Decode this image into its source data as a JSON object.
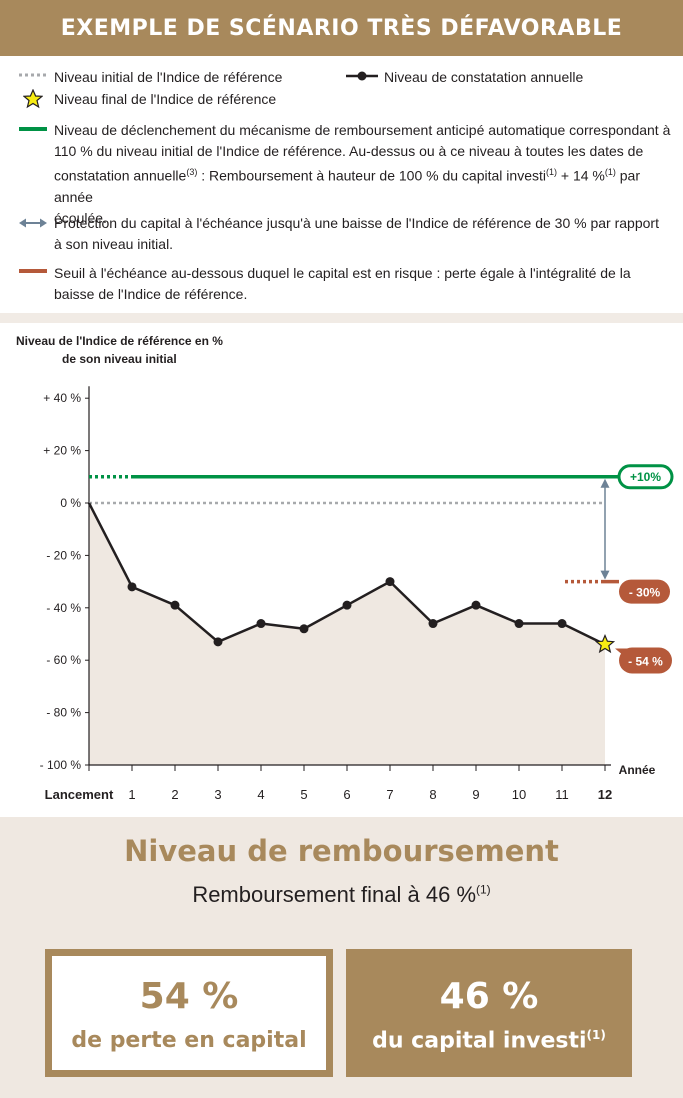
{
  "header": {
    "title": "EXEMPLE DE SCÉNARIO TRÈS DÉFAVORABLE"
  },
  "legend": {
    "initial": "Niveau initial de l'Indice de référence",
    "annual": "Niveau de constatation annuelle",
    "final": "Niveau final de l'Indice de référence",
    "trigger_line1": "Niveau de déclenchement du mécanisme de remboursement anticipé automatique correspondant à",
    "trigger_line2": "110 % du niveau initial de l'Indice de référence. Au-dessus ou à ce niveau à toutes les dates de",
    "trigger_line3a": "constatation annuelle",
    "trigger_sup1": "(3)",
    "trigger_line3b": " : Remboursement à hauteur de 100 % du capital investi",
    "trigger_sup2": "(1)",
    "trigger_line3c": " + 14 %",
    "trigger_sup3": "(1)",
    "trigger_line3d": " par année",
    "trigger_line4": "écoulée.",
    "protection_line1": "Protection du capital à l'échéance jusqu'à une baisse de l'Indice de référence de 30 % par rapport",
    "protection_line2": "à son niveau initial.",
    "threshold_line1": "Seuil à l'échéance au-dessous duquel le capital est en risque : perte égale à l'intégralité de la",
    "threshold_line2": "baisse de l'Indice de référence."
  },
  "colors": {
    "gold": "#a8895c",
    "green": "#009245",
    "rust": "#b5593a",
    "arrow": "#6d8296",
    "grey": "#a7a9ac",
    "fill": "#efe8e1"
  },
  "chart_data": {
    "type": "line",
    "ylabel_line1": "Niveau de l'Indice de référence en %",
    "ylabel_line2": "de son niveau initial",
    "xlabel": "Année",
    "x_tick_labels": [
      "Lancement",
      "1",
      "2",
      "3",
      "4",
      "5",
      "6",
      "7",
      "8",
      "9",
      "10",
      "11",
      "12"
    ],
    "y_tick_labels": [
      "+ 40 %",
      "+ 20 %",
      "0 %",
      "- 20 %",
      "- 40 %",
      "- 60 %",
      "- 80 %",
      "- 100 %"
    ],
    "y_ticks": [
      40,
      20,
      0,
      -20,
      -40,
      -60,
      -80,
      -100
    ],
    "ylim": [
      -100,
      40
    ],
    "x": [
      0,
      1,
      2,
      3,
      4,
      5,
      6,
      7,
      8,
      9,
      10,
      11,
      12
    ],
    "values": [
      0,
      -32,
      -39,
      -53,
      -46,
      -48,
      -39,
      -30,
      -46,
      -39,
      -46,
      -46,
      -54
    ],
    "trigger_level": 10,
    "threshold_level": -30,
    "final_value": -54,
    "labels": {
      "trigger": "+10%",
      "threshold": "- 30%",
      "final": "- 54 %"
    }
  },
  "result": {
    "title": "Niveau de remboursement",
    "subtitle": "Remboursement final à 46 %",
    "subtitle_sup": "(1)",
    "loss_value": "54 %",
    "loss_label": "de perte en capital",
    "return_value": "46 %",
    "return_label": "du capital investi",
    "return_sup": "(1)"
  }
}
